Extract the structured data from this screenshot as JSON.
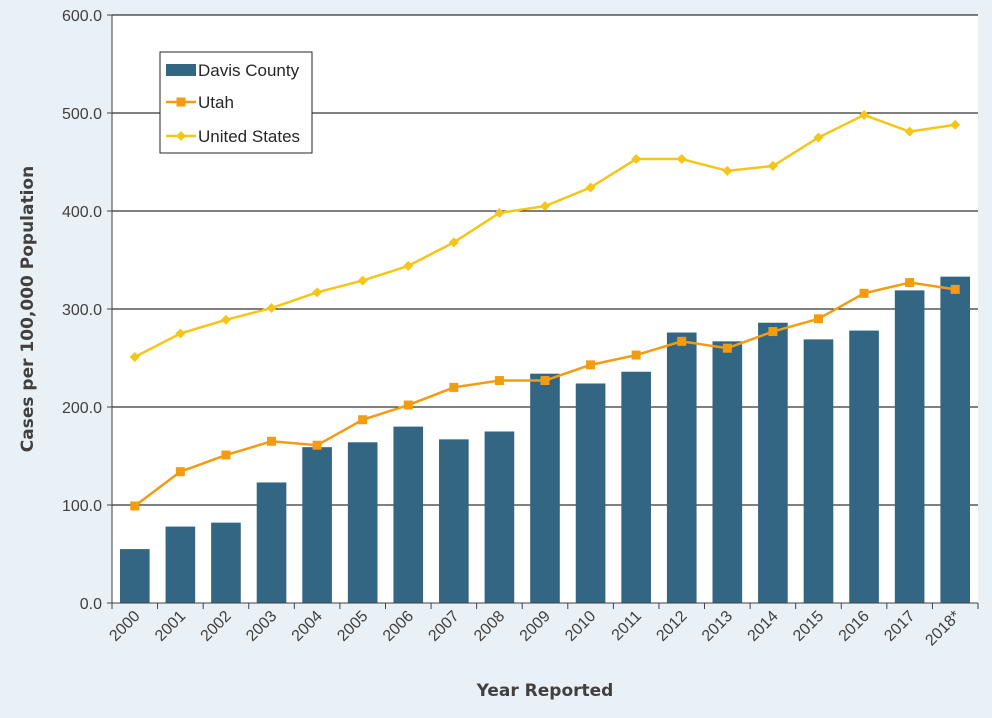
{
  "chart_data": {
    "type": "bar",
    "title": "",
    "xlabel": "Year Reported",
    "ylabel": "Cases per 100,000 Population",
    "ylim": [
      0,
      600
    ],
    "yticks": [
      "0.0",
      "100.0",
      "200.0",
      "300.0",
      "400.0",
      "500.0",
      "600.0"
    ],
    "grid": true,
    "legend_position": "top-left",
    "categories": [
      "2000",
      "2001",
      "2002",
      "2003",
      "2004",
      "2005",
      "2006",
      "2007",
      "2008",
      "2009",
      "2010",
      "2011",
      "2012",
      "2013",
      "2014",
      "2015",
      "2016",
      "2017",
      "2018*"
    ],
    "series": [
      {
        "name": "Davis County",
        "type": "bar",
        "color": "#336683",
        "values": [
          55,
          78,
          82,
          123,
          159,
          164,
          180,
          167,
          175,
          234,
          224,
          236,
          276,
          267,
          286,
          269,
          278,
          319,
          333
        ]
      },
      {
        "name": "Utah",
        "type": "line",
        "marker": "square",
        "color": "#f39c12",
        "values": [
          99,
          134,
          151,
          165,
          161,
          187,
          202,
          220,
          227,
          227,
          243,
          253,
          267,
          260,
          277,
          290,
          316,
          327,
          320
        ]
      },
      {
        "name": "United States",
        "type": "line",
        "marker": "diamond",
        "color": "#f5c518",
        "values": [
          251,
          275,
          289,
          301,
          317,
          329,
          344,
          368,
          398,
          405,
          424,
          453,
          453,
          441,
          446,
          475,
          498,
          481,
          488
        ]
      }
    ]
  }
}
